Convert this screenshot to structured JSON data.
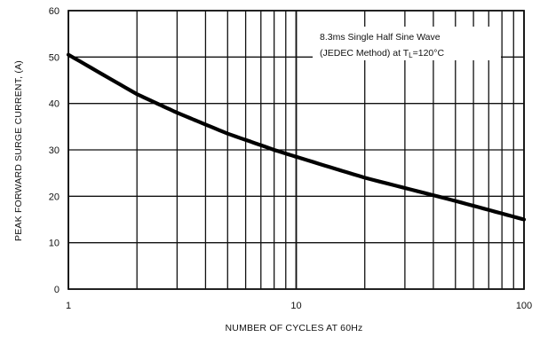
{
  "chart_data": {
    "type": "line",
    "title": "",
    "xlabel": "NUMBER OF CYCLES AT 60Hz",
    "ylabel": "PEAK FORWARD SURGE CURRENT, (A)",
    "x_scale": "log",
    "xlim": [
      1,
      100
    ],
    "ylim": [
      0,
      60
    ],
    "x_ticks": [
      1,
      10,
      100
    ],
    "y_ticks": [
      0,
      10,
      20,
      30,
      40,
      50,
      60
    ],
    "grid": true,
    "annotation_lines": [
      "8.3ms Single Half Sine Wave",
      "(JEDEC Method) at T",
      "L",
      "=120°C"
    ],
    "series": [
      {
        "x": [
          1,
          2,
          3,
          5,
          8,
          10,
          20,
          50,
          100
        ],
        "y": [
          50.5,
          42,
          38,
          33.5,
          30,
          28.5,
          24,
          19,
          15
        ]
      }
    ]
  }
}
